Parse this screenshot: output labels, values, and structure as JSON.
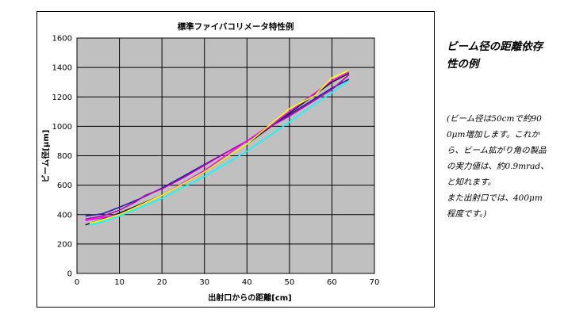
{
  "chart_data": {
    "type": "line",
    "title": "標準ファイバコリメータ特性例",
    "xlabel": "出射口からの距離[cm]",
    "ylabel": "ビーム径[μm]",
    "xlim": [
      0,
      70
    ],
    "ylim": [
      0,
      1600
    ],
    "xticks": [
      0,
      10,
      20,
      30,
      40,
      50,
      60,
      70
    ],
    "yticks": [
      0,
      200,
      400,
      600,
      800,
      1000,
      1200,
      1400,
      1600
    ],
    "grid": true,
    "legend": "none",
    "plot_background": "#c0c0c0",
    "series": [
      {
        "color": "#1a1a1a",
        "x": [
          2,
          10,
          20,
          30,
          40,
          50,
          60,
          64
        ],
        "y": [
          330,
          410,
          530,
          690,
          880,
          1090,
          1300,
          1360
        ]
      },
      {
        "color": "#2020a0",
        "x": [
          2,
          6,
          10,
          15,
          20,
          25,
          30,
          35,
          40,
          45,
          50,
          55,
          60,
          64
        ],
        "y": [
          390,
          405,
          450,
          510,
          580,
          660,
          740,
          820,
          900,
          990,
          1080,
          1170,
          1260,
          1320
        ]
      },
      {
        "color": "#c000c0",
        "x": [
          2,
          6,
          10,
          14,
          16,
          20,
          25,
          30,
          35,
          40,
          45,
          50,
          55,
          60,
          64
        ],
        "y": [
          370,
          390,
          430,
          490,
          530,
          575,
          650,
          735,
          820,
          900,
          990,
          1070,
          1160,
          1250,
          1350
        ]
      },
      {
        "color": "#ff00ff",
        "x": [
          2,
          10,
          20,
          30,
          40,
          50,
          60,
          64
        ],
        "y": [
          360,
          400,
          530,
          700,
          900,
          1100,
          1310,
          1370
        ]
      },
      {
        "color": "#ffff00",
        "x": [
          3,
          10,
          20,
          30,
          40,
          50,
          56,
          60,
          64
        ],
        "y": [
          340,
          400,
          530,
          690,
          880,
          1120,
          1210,
          1330,
          1380
        ]
      },
      {
        "color": "#00ffff",
        "x": [
          3,
          6,
          10,
          20,
          30,
          40,
          50,
          60,
          64
        ],
        "y": [
          330,
          350,
          390,
          510,
          660,
          830,
          1030,
          1230,
          1310
        ]
      }
    ]
  },
  "side": {
    "title_lines": [
      "ビーム径の距離依存",
      "性の例"
    ],
    "note_lines": [
      "(ビーム径は50cmで約90",
      "0μm増加します。これか",
      "ら、ビーム拡がり角の製品",
      "の実力値は、約0.9mrad、",
      "と知れます。",
      "また出射口では、400μm",
      "程度です。)"
    ]
  }
}
